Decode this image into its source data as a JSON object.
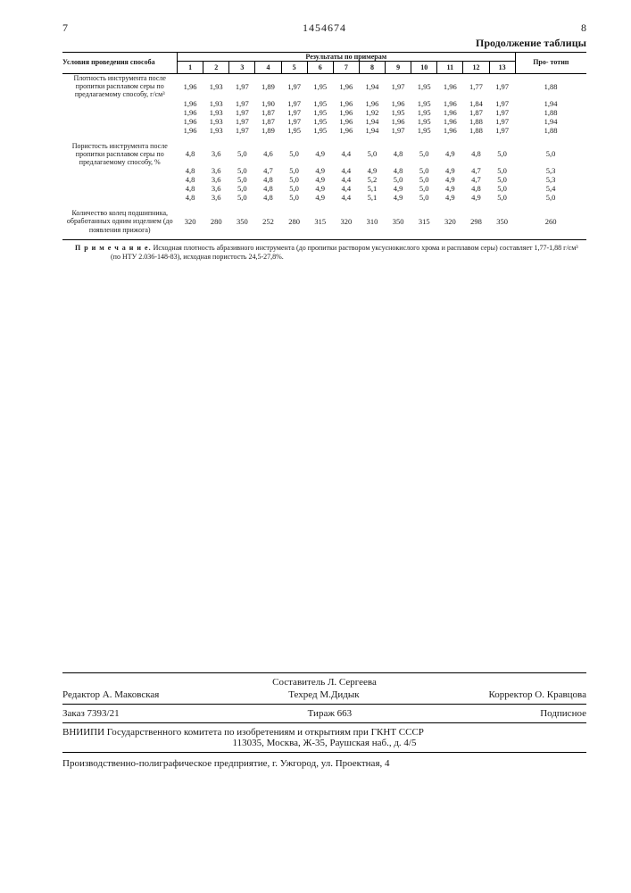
{
  "header": {
    "left_col": "7",
    "patent_no": "1454674",
    "right_col": "8"
  },
  "continuation": "Продолжение  таблицы",
  "table": {
    "cond_header": "Условия проведения способа",
    "results_header": "Результаты по примерам",
    "proto_header": "Про-\nтотип",
    "col_nums": [
      "1",
      "2",
      "3",
      "4",
      "5",
      "6",
      "7",
      "8",
      "9",
      "10",
      "11",
      "12",
      "13"
    ],
    "groups": [
      {
        "label": "Плотность инструмента после пропитки расплавом серы по предлагаемому способу, г/см³",
        "rows": [
          [
            "1,96",
            "1,93",
            "1,97",
            "1,89",
            "1,97",
            "1,95",
            "1,96",
            "1,94",
            "1,97",
            "1,95",
            "1,96",
            "1,77",
            "1,97",
            "1,88"
          ],
          [
            "1,96",
            "1,93",
            "1,97",
            "1,90",
            "1,97",
            "1,95",
            "1,96",
            "1,96",
            "1,96",
            "1,95",
            "1,96",
            "1,84",
            "1,97",
            "1,94"
          ],
          [
            "1,96",
            "1,93",
            "1,97",
            "1,87",
            "1,97",
            "1,95",
            "1,96",
            "1,92",
            "1,95",
            "1,95",
            "1,96",
            "1,87",
            "1,97",
            "1,88"
          ],
          [
            "1,96",
            "1,93",
            "1,97",
            "1,87",
            "1,97",
            "1,95",
            "1,96",
            "1,94",
            "1,96",
            "1,95",
            "1,96",
            "1,88",
            "1,97",
            "1,94"
          ],
          [
            "1,96",
            "1,93",
            "1,97",
            "1,89",
            "1,95",
            "1,95",
            "1,96",
            "1,94",
            "1,97",
            "1,95",
            "1,96",
            "1,88",
            "1,97",
            "1,88"
          ]
        ]
      },
      {
        "label": "Пористость инструмента после пропитки расплавом серы по предлагаемому способу, %",
        "rows": [
          [
            "4,8",
            "3,6",
            "5,0",
            "4,6",
            "5,0",
            "4,9",
            "4,4",
            "5,0",
            "4,8",
            "5,0",
            "4,9",
            "4,8",
            "5,0",
            "5,0"
          ],
          [
            "4,8",
            "3,6",
            "5,0",
            "4,7",
            "5,0",
            "4,9",
            "4,4",
            "4,9",
            "4,8",
            "5,0",
            "4,9",
            "4,7",
            "5,0",
            "5,3"
          ],
          [
            "4,8",
            "3,6",
            "5,0",
            "4,8",
            "5,0",
            "4,9",
            "4,4",
            "5,2",
            "5,0",
            "5,0",
            "4,9",
            "4,7",
            "5,0",
            "5,3"
          ],
          [
            "4,8",
            "3,6",
            "5,0",
            "4,8",
            "5,0",
            "4,9",
            "4,4",
            "5,1",
            "4,9",
            "5,0",
            "4,9",
            "4,8",
            "5,0",
            "5,4"
          ],
          [
            "4,8",
            "3,6",
            "5,0",
            "4,8",
            "5,0",
            "4,9",
            "4,4",
            "5,1",
            "4,9",
            "5,0",
            "4,9",
            "4,9",
            "5,0",
            "5,0"
          ]
        ]
      },
      {
        "label": "Количество колец подшипника, обработанных одним изделием (до появления прижога)",
        "rows": [
          [
            "320",
            "280",
            "350",
            "252",
            "280",
            "315",
            "320",
            "310",
            "350",
            "315",
            "320",
            "298",
            "350",
            "260"
          ]
        ]
      }
    ]
  },
  "note": {
    "lead": "П р и м е ч а н и е.",
    "text": "Исходная плотность абразивного инструмента (до пропитки раствором уксуснокислого хрома и расплавом серы) составляет 1,77-1,88 г/см³  (по НТУ 2.036-148-83), исходная пористость 24,5-27,8%."
  },
  "footer": {
    "sost": "Составитель Л. Сергеева",
    "editor": "Редактор А. Маковская",
    "tehred": "Техред    М.Дидык",
    "corrector": "Корректор  О. Кравцова",
    "order": "Заказ 7393/21",
    "tirazh": "Тираж  663",
    "podp": "Подписное",
    "org1": "ВНИИПИ Государственного комитета по изобретениям и открытиям при ГКНТ СССР",
    "org2": "113035, Москва, Ж-35, Раушская наб., д. 4/5",
    "print": "Производственно-полиграфическое предприятие, г. Ужгород, ул. Проектная, 4"
  }
}
